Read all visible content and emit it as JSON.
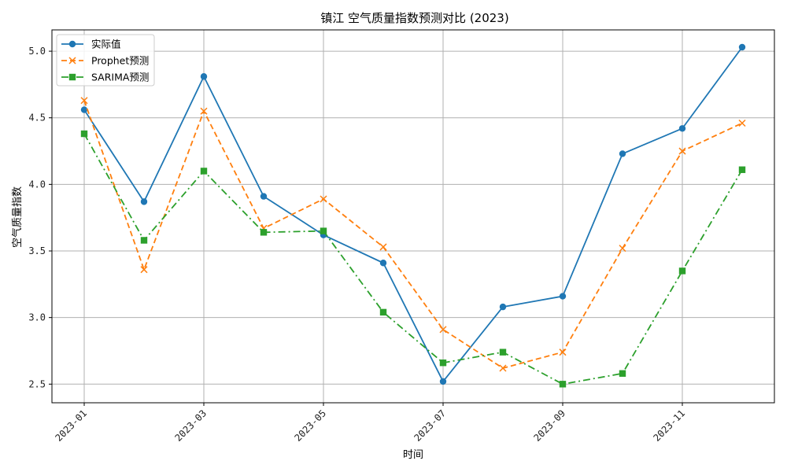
{
  "chart_data": {
    "type": "line",
    "title": "镇江 空气质量指数预测对比 (2023)",
    "xlabel": "时间",
    "ylabel": "空气质量指数",
    "x": [
      "2023-01",
      "2023-02",
      "2023-03",
      "2023-04",
      "2023-05",
      "2023-06",
      "2023-07",
      "2023-08",
      "2023-09",
      "2023-10",
      "2023-11",
      "2023-12"
    ],
    "x_tick_labels": [
      "2023-01",
      "2023-03",
      "2023-05",
      "2023-07",
      "2023-09",
      "2023-11"
    ],
    "y_ticks": [
      "2.5",
      "3.0",
      "3.5",
      "4.0",
      "4.5",
      "5.0"
    ],
    "ylim": [
      2.36,
      5.16
    ],
    "grid": true,
    "legend_position": "top-left",
    "series": [
      {
        "name": "实际值",
        "color": "#1f77b4",
        "marker": "circle",
        "dash": "solid",
        "values": [
          4.56,
          3.87,
          4.81,
          3.91,
          3.62,
          3.41,
          2.52,
          3.08,
          3.16,
          4.23,
          4.42,
          5.03
        ]
      },
      {
        "name": "Prophet预测",
        "color": "#ff7f0e",
        "marker": "x",
        "dash": "dashed",
        "values": [
          4.63,
          3.36,
          4.55,
          3.67,
          3.89,
          3.53,
          2.91,
          2.62,
          2.74,
          3.52,
          4.25,
          4.46
        ]
      },
      {
        "name": "SARIMA预测",
        "color": "#2ca02c",
        "marker": "square",
        "dash": "dashdot",
        "values": [
          4.38,
          3.58,
          4.1,
          3.64,
          3.65,
          3.04,
          2.66,
          2.74,
          2.5,
          2.58,
          3.35,
          4.11
        ]
      }
    ]
  }
}
